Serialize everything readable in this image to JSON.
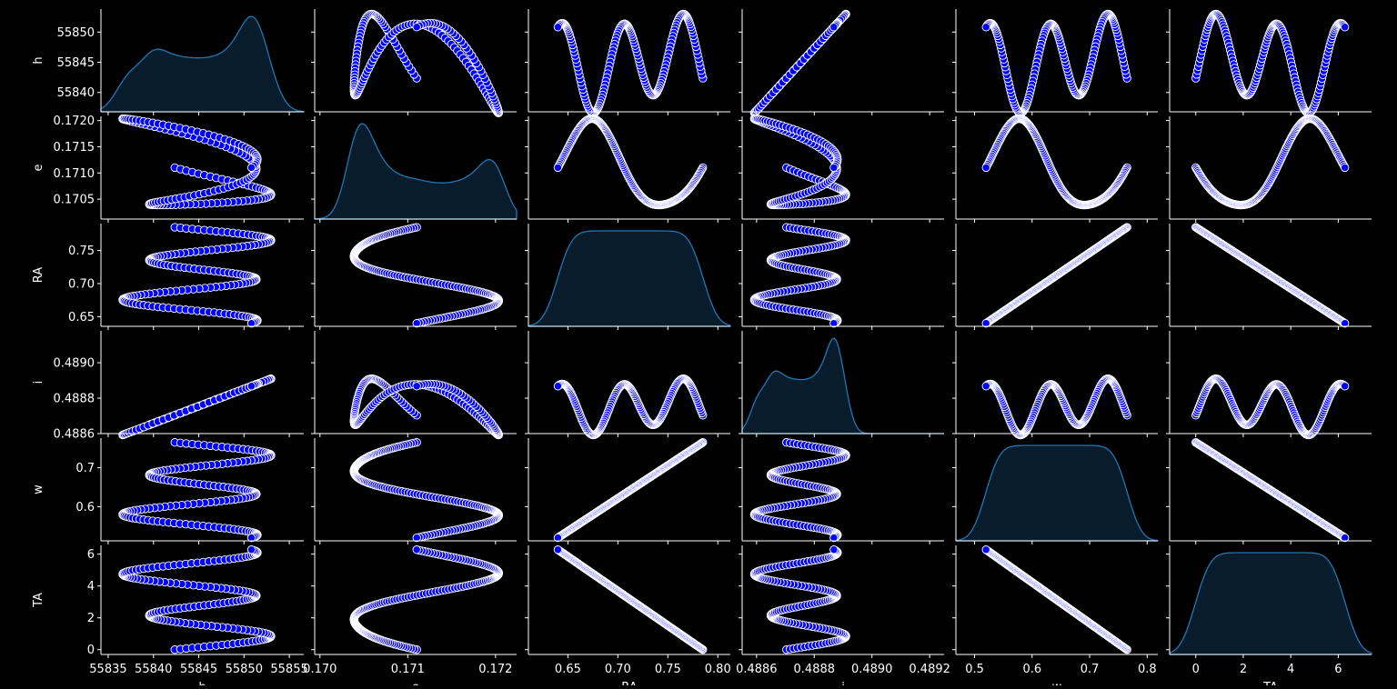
{
  "chart_data": {
    "type": "scatter",
    "kind": "pairplot",
    "variables": [
      "h",
      "e",
      "RA",
      "i",
      "w",
      "TA"
    ],
    "diagonal": "kde",
    "theme": {
      "background": "#000000",
      "foreground": "#ffffff",
      "marker_fill": "#0000ff",
      "marker_edge": "#ffffff",
      "kde_fill": "#081c2c",
      "kde_line": "#1f77b4"
    },
    "ranges": {
      "h": {
        "lim": [
          55836.8,
          55853.8
        ],
        "ticks": [
          55840,
          55845,
          55850
        ],
        "xticks": [
          55835,
          55840,
          55845,
          55850,
          55855
        ],
        "xlim": [
          55834.2,
          55856.6
        ]
      },
      "e": {
        "lim": [
          0.17012,
          0.17208
        ],
        "ticks": [
          0.1705,
          0.171,
          0.1715,
          0.172
        ],
        "xticks": [
          0.17,
          0.171,
          0.172
        ],
        "xlim": [
          0.16994,
          0.17224
        ]
      },
      "RA": {
        "lim": [
          0.6355,
          0.7905
        ],
        "ticks": [
          0.65,
          0.7,
          0.75
        ],
        "xticks": [
          0.65,
          0.7,
          0.75,
          0.8
        ],
        "xlim": [
          0.6105,
          0.8125
        ]
      },
      "i": {
        "lim": [
          0.4886,
          0.48918
        ],
        "ticks": [
          0.4886,
          0.4888,
          0.489
        ],
        "xticks": [
          0.4886,
          0.4888,
          0.489,
          0.4892
        ],
        "xlim": [
          0.48855,
          0.48925
        ]
      },
      "w": {
        "lim": [
          0.512,
          0.776
        ],
        "ticks": [
          0.6,
          0.7
        ],
        "xticks": [
          0.5,
          0.6,
          0.7,
          0.8
        ],
        "xlim": [
          0.4675,
          0.8185
        ]
      },
      "TA": {
        "lim": [
          -0.3,
          6.55
        ],
        "ticks": [
          0,
          2,
          4,
          6
        ],
        "xticks": [
          0,
          2,
          4,
          6
        ],
        "xlim": [
          -1.1,
          7.4
        ]
      }
    },
    "series": [
      {
        "x": [
          0.0,
          0.2,
          0.5,
          1.0,
          1.5,
          2.0,
          2.5,
          3.0,
          3.14,
          3.5,
          4.0,
          4.5,
          5.0,
          5.5,
          6.0,
          6.28
        ]
      }
    ],
    "xlabel": "",
    "ylabel": ""
  }
}
